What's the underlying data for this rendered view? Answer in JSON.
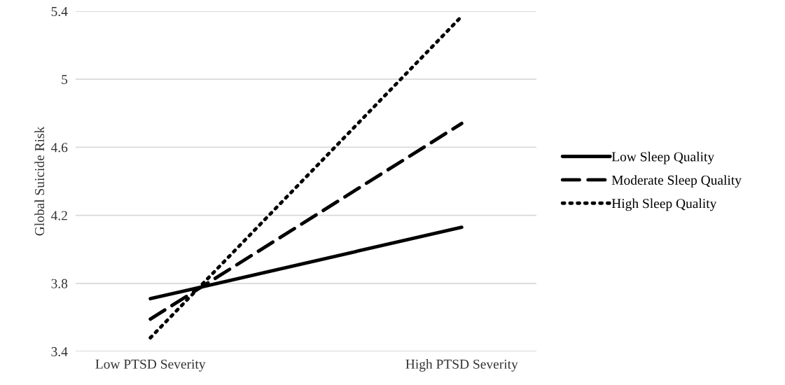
{
  "chart_data": {
    "type": "line",
    "ylabel": "Global Suicide Risk",
    "categories": [
      "Low PTSD Severity",
      "High PTSD Severity"
    ],
    "series": [
      {
        "name": "Low Sleep Quality",
        "color": "#000000",
        "values": [
          3.71,
          4.13
        ],
        "line_style": "solid"
      },
      {
        "name": "Moderate Sleep Quality",
        "color": "#000000",
        "values": [
          3.59,
          4.74
        ],
        "line_style": "dashed"
      },
      {
        "name": "High Sleep Quality",
        "color": "#000000",
        "values": [
          3.48,
          5.37
        ],
        "line_style": "dotted"
      }
    ],
    "ylim": [
      3.4,
      5.4
    ],
    "yticks": [
      3.4,
      3.8,
      4.2,
      4.6,
      5,
      5.4
    ],
    "grid": "y",
    "legend": "right",
    "marker": "none"
  }
}
